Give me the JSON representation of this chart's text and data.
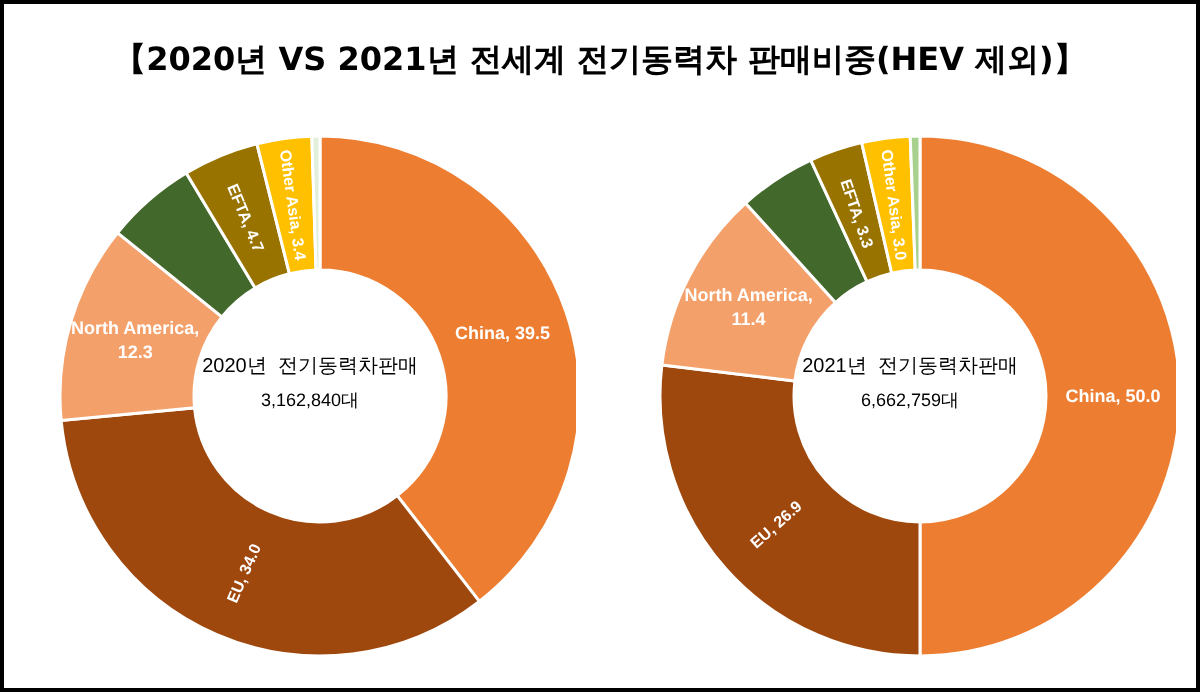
{
  "chart_data": [
    {
      "type": "donut",
      "title": "【2020년 VS 2021년 전세계 전기동력차 판매비중(HEV 제외)】",
      "categories": [
        null,
        null,
        null,
        null,
        null,
        null,
        null
      ],
      "values": [
        39.5,
        34.0,
        12.3,
        5.6,
        4.7,
        3.4,
        0.5
      ],
      "colors": [
        "#ed7d31",
        "#9e480e",
        "#f4a06a",
        "#43682b",
        "#997300",
        "#ffc000",
        "#e2efda"
      ],
      "value_labels": [
        "China, 39.5",
        "EU, 34.0",
        "North America, 12.3",
        null,
        "EFTA, 4.7",
        "Other Asia, 3.4",
        null
      ],
      "annotations": [
        "2020년  전기동력차판매",
        "3,162,840대"
      ]
    },
    {
      "type": "donut",
      "categories": [
        null,
        null,
        null,
        null,
        null,
        null,
        null
      ],
      "values": [
        50.0,
        26.9,
        11.4,
        4.8,
        3.3,
        3.0,
        0.6
      ],
      "colors": [
        "#ed7d31",
        "#9e480e",
        "#f4a06a",
        "#43682b",
        "#997300",
        "#ffc000",
        "#a9d18e"
      ],
      "value_labels": [
        "China, 50.0",
        "EU, 26.9",
        "North America, 11.4",
        null,
        "EFTA, 3.3",
        "Other Asia, 3.0",
        null
      ],
      "annotations": [
        "2021년  전기동력차판매",
        "6,662,759대"
      ]
    }
  ]
}
